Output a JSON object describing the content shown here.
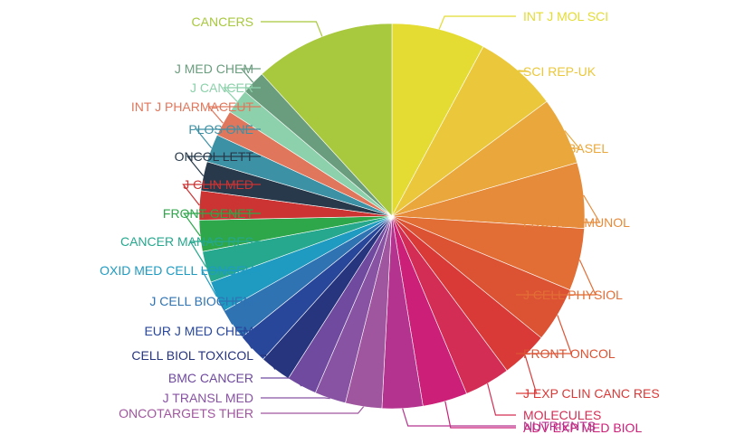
{
  "chart_data": {
    "type": "pie",
    "title": "",
    "legend": "none",
    "slices": [
      {
        "label": "INT J MOL SCI",
        "value": 9.0,
        "color": "#e4dc33"
      },
      {
        "label": "SCI REP-UK",
        "value": 8.0,
        "color": "#ebc83b"
      },
      {
        "label": "CELLS-BASEL",
        "value": 6.5,
        "color": "#eaa83c"
      },
      {
        "label": "FRONT IMMUNOL",
        "value": 6.3,
        "color": "#e58b3a"
      },
      {
        "label": "J CELL PHYSIOL",
        "value": 6.0,
        "color": "#e26e36"
      },
      {
        "label": "FRONT ONCOL",
        "value": 5.3,
        "color": "#dc5333"
      },
      {
        "label": "J EXP CLIN CANC RES",
        "value": 4.5,
        "color": "#d93a38"
      },
      {
        "label": "MOLECULES",
        "value": 4.4,
        "color": "#d42d55"
      },
      {
        "label": "ADV EXP MED BIOL",
        "value": 4.3,
        "color": "#cc1f78"
      },
      {
        "label": "NUTRIENTS",
        "value": 3.9,
        "color": "#b4338e"
      },
      {
        "label": "ONCOTARGETS THER",
        "value": 3.5,
        "color": "#a0569f"
      },
      {
        "label": "J TRANSL MED",
        "value": 3.0,
        "color": "#8853a3"
      },
      {
        "label": "BMC CANCER",
        "value": 2.9,
        "color": "#6f4a9f"
      },
      {
        "label": "CELL BIOL TOXICOL",
        "value": 3.0,
        "color": "#27347e"
      },
      {
        "label": "EUR J MED CHEM",
        "value": 2.9,
        "color": "#29479a"
      },
      {
        "label": "J CELL BIOCHEM",
        "value": 3.0,
        "color": "#2f73b3"
      },
      {
        "label": "OXID MED CELL LONGEV",
        "value": 3.0,
        "color": "#1f9bc2"
      },
      {
        "label": "CANCER MANAG RES",
        "value": 3.0,
        "color": "#25a88e"
      },
      {
        "label": "FRONT GENET",
        "value": 3.0,
        "color": "#2ea64a"
      },
      {
        "label": "J CLIN MED",
        "value": 2.8,
        "color": "#cc3333"
      },
      {
        "label": "ONCOL LETT",
        "value": 2.8,
        "color": "#27394a"
      },
      {
        "label": "PLOS ONE",
        "value": 2.7,
        "color": "#3d91a5"
      },
      {
        "label": "INT J PHARMACEUT",
        "value": 2.5,
        "color": "#e0775c"
      },
      {
        "label": "J CANCER",
        "value": 2.4,
        "color": "#8cd1ab"
      },
      {
        "label": "J MED CHEM",
        "value": 2.3,
        "color": "#6a9c7e"
      },
      {
        "label": "CANCERS",
        "value": 13.5,
        "color": "#a8c83d"
      }
    ]
  }
}
